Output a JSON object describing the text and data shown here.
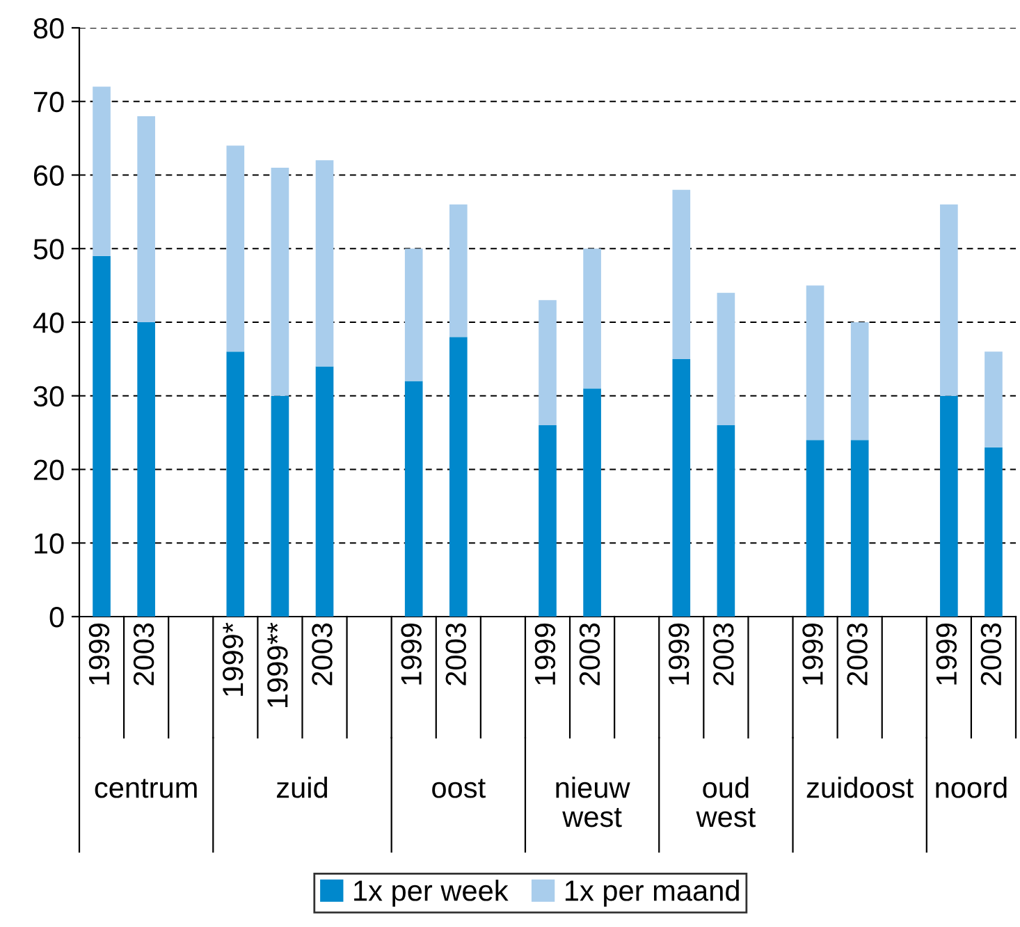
{
  "chart_data": {
    "type": "bar",
    "stacked": true,
    "categories": [
      "1999",
      "2003",
      null,
      "1999*",
      "1999**",
      "2003",
      null,
      "1999",
      "2003",
      null,
      "1999",
      "2003",
      null,
      "1999",
      "2003",
      null,
      "1999",
      "2003",
      null,
      "1999",
      "2003"
    ],
    "series": [
      {
        "name": "1x per week",
        "color": "#0088cc",
        "values": [
          49,
          40,
          null,
          36,
          30,
          34,
          null,
          32,
          38,
          null,
          26,
          31,
          null,
          35,
          26,
          null,
          24,
          24,
          null,
          30,
          23
        ]
      },
      {
        "name": "1x per maand",
        "color": "#a9cdec",
        "values": [
          23,
          28,
          null,
          28,
          31,
          28,
          null,
          18,
          18,
          null,
          17,
          19,
          null,
          23,
          18,
          null,
          21,
          16,
          null,
          26,
          13
        ]
      }
    ],
    "annotations": [
      "centrum",
      "zuid",
      "oost",
      "nieuw\nwest",
      "oud\nwest",
      "zuidoost",
      "noord"
    ],
    "ylim": [
      0,
      80
    ],
    "yticks": [
      0,
      10,
      20,
      30,
      40,
      50,
      60,
      70,
      80
    ],
    "grid": "y",
    "legend": "bottom"
  }
}
